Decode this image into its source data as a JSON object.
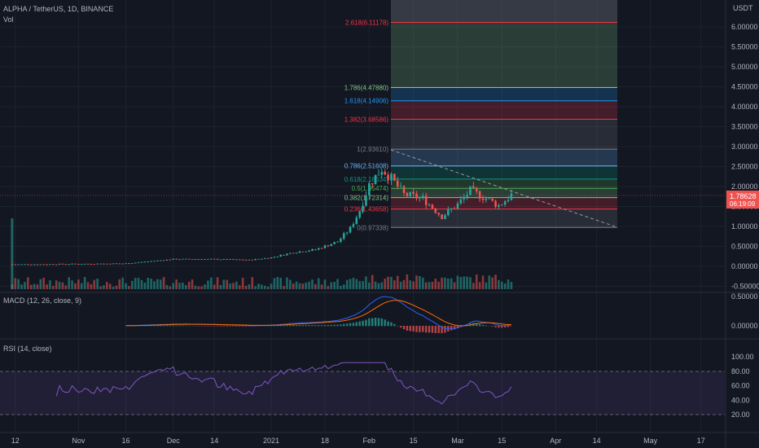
{
  "header": {
    "symbol": "ALPHA / TetherUS, 1D, BINANCE",
    "vol_label": "Vol"
  },
  "price_axis": {
    "unit": "USDT",
    "ticks": [
      "6.00000",
      "5.50000",
      "5.00000",
      "4.50000",
      "4.00000",
      "3.50000",
      "3.00000",
      "2.50000",
      "2.00000",
      "1.50000",
      "1.00000",
      "0.50000",
      "0.00000",
      "-0.50000"
    ],
    "current_price": "1.78628",
    "countdown": "06:19:09"
  },
  "time_axis": {
    "ticks": [
      "12",
      "Nov",
      "16",
      "Dec",
      "14",
      "2021",
      "18",
      "Feb",
      "15",
      "Mar",
      "15",
      "Apr",
      "14",
      "May",
      "17"
    ]
  },
  "fibonacci": {
    "levels": [
      {
        "ratio": 0,
        "label": "0(0.97338)",
        "price": 0.97338,
        "color": "#787b86"
      },
      {
        "ratio": 0.236,
        "label": "0.236(1.43658)",
        "price": 1.43658,
        "color": "#f23645"
      },
      {
        "ratio": 0.382,
        "label": "0.382(1.72314)",
        "price": 1.72314,
        "color": "#81c784"
      },
      {
        "ratio": 0.5,
        "label": "0.5(1.95474)",
        "price": 1.95474,
        "color": "#4caf50"
      },
      {
        "ratio": 0.618,
        "label": "0.618(2.18634)",
        "price": 2.18634,
        "color": "#089981"
      },
      {
        "ratio": 0.786,
        "label": "0.786(2.51608)",
        "price": 2.51608,
        "color": "#64b5f6"
      },
      {
        "ratio": 1,
        "label": "1(2.93610)",
        "price": 2.9361,
        "color": "#787b86"
      },
      {
        "ratio": 1.382,
        "label": "1.382(3.68586)",
        "price": 3.68586,
        "color": "#f23645"
      },
      {
        "ratio": 1.618,
        "label": "1.618(4.14906)",
        "price": 4.14906,
        "color": "#2196f3"
      },
      {
        "ratio": 1.786,
        "label": "1.786(4.47880)",
        "price": 4.4788,
        "color": "#81c784"
      },
      {
        "ratio": 2.618,
        "label": "2.618(6.11178)",
        "price": 6.11178,
        "color": "#f23645"
      }
    ]
  },
  "macd": {
    "label": "MACD (12, 26, close, 9)",
    "ticks": [
      "0.50000",
      "0.00000"
    ]
  },
  "rsi": {
    "label": "RSI (14, close)",
    "ticks": [
      "100.00",
      "80.00",
      "60.00",
      "40.00",
      "20.00"
    ],
    "upper": 70,
    "lower": 30
  },
  "colors": {
    "up": "#26a69a",
    "down": "#ef5350",
    "macd": "#2962ff",
    "signal": "#ff6d00",
    "rsi": "#7e57c2",
    "background": "#131722"
  },
  "chart_data": {
    "type": "candlestick",
    "title": "ALPHA / TetherUS, 1D, BINANCE",
    "x_range": [
      "2020-10-10",
      "2021-03-18"
    ],
    "ylim": [
      -0.5,
      6.0
    ],
    "close_path": [
      [
        "2020-10-11",
        0.05
      ],
      [
        "2020-10-20",
        0.05
      ],
      [
        "2020-11-01",
        0.06
      ],
      [
        "2020-11-16",
        0.07
      ],
      [
        "2020-12-01",
        0.18
      ],
      [
        "2020-12-14",
        0.18
      ],
      [
        "2020-12-25",
        0.16
      ],
      [
        "2021-01-01",
        0.22
      ],
      [
        "2021-01-08",
        0.35
      ],
      [
        "2021-01-15",
        0.42
      ],
      [
        "2021-01-22",
        0.62
      ],
      [
        "2021-01-26",
        0.95
      ],
      [
        "2021-01-29",
        1.4
      ],
      [
        "2021-02-01",
        2.05
      ],
      [
        "2021-02-05",
        2.45
      ],
      [
        "2021-02-08",
        2.2
      ],
      [
        "2021-02-12",
        1.8
      ],
      [
        "2021-02-18",
        1.7
      ],
      [
        "2021-02-24",
        1.25
      ],
      [
        "2021-03-01",
        1.55
      ],
      [
        "2021-03-05",
        1.9
      ],
      [
        "2021-03-10",
        1.7
      ],
      [
        "2021-03-14",
        1.52
      ],
      [
        "2021-03-18",
        1.79
      ]
    ],
    "last_price": 1.78628
  }
}
